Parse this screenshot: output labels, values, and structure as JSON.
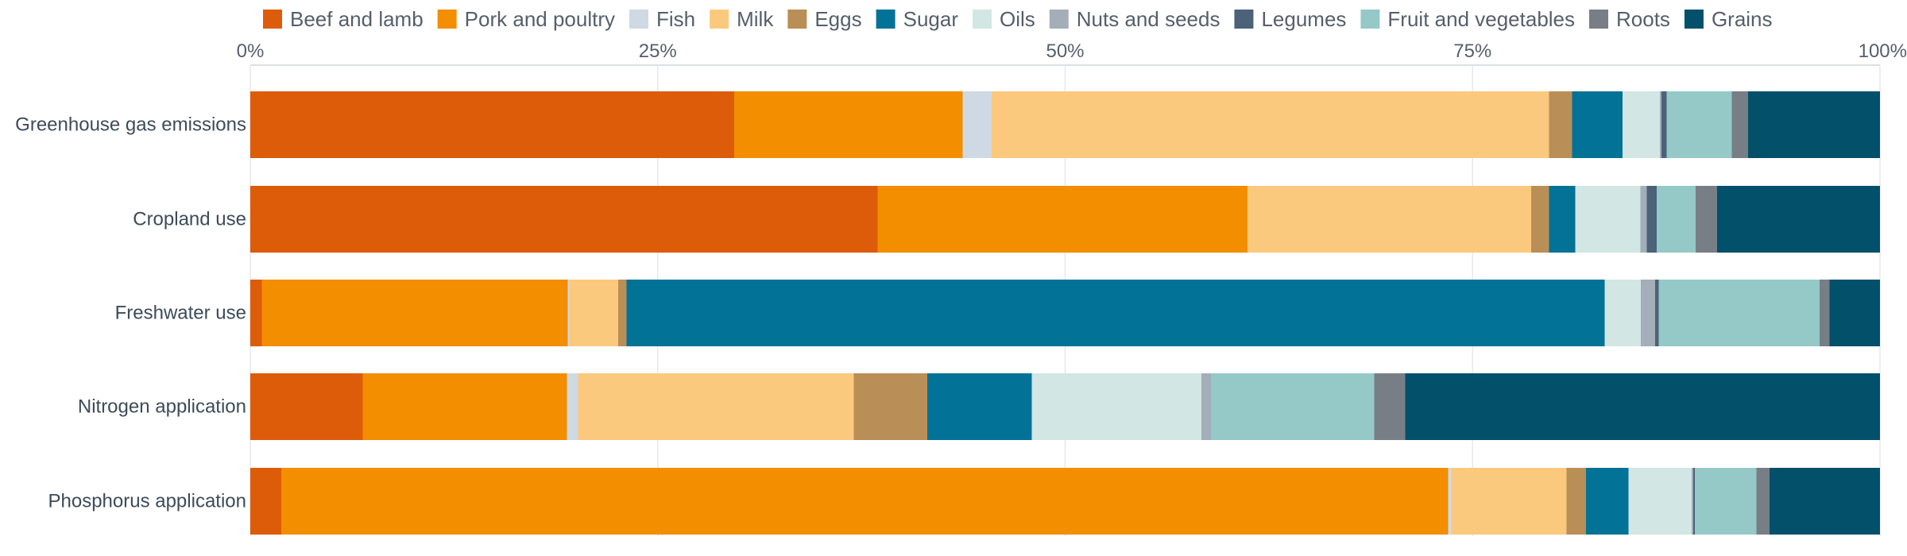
{
  "chart_data": {
    "type": "bar",
    "orientation": "horizontal",
    "stacked": true,
    "normalized": true,
    "title": "",
    "xlabel": "",
    "ylabel": "",
    "xlim": [
      0,
      100
    ],
    "x_ticks": [
      "0%",
      "25%",
      "50%",
      "75%",
      "100%"
    ],
    "grid": true,
    "legend_position": "top",
    "categories": [
      "Greenhouse gas emissions",
      "Cropland use",
      "Freshwater use",
      "Nitrogen application",
      "Phosphorus application"
    ],
    "series": [
      {
        "name": "Beef and lamb",
        "color": "#dd5c0a",
        "values": [
          29.7,
          38.5,
          0.7,
          6.9,
          1.9
        ]
      },
      {
        "name": "Pork and poultry",
        "color": "#f28e00",
        "values": [
          14.0,
          22.7,
          18.8,
          12.5,
          71.9
        ]
      },
      {
        "name": "Fish",
        "color": "#cfd9e3",
        "values": [
          1.8,
          0.0,
          0.1,
          0.7,
          0.2
        ]
      },
      {
        "name": "Milk",
        "color": "#fbc97d",
        "values": [
          34.2,
          17.4,
          3.0,
          16.9,
          7.1
        ]
      },
      {
        "name": "Eggs",
        "color": "#b98f57",
        "values": [
          1.4,
          1.1,
          0.5,
          4.5,
          1.2
        ]
      },
      {
        "name": "Sugar",
        "color": "#037297",
        "values": [
          3.1,
          1.6,
          60.1,
          6.4,
          2.6
        ]
      },
      {
        "name": "Oils",
        "color": "#d2e6e4",
        "values": [
          2.3,
          4.0,
          2.2,
          10.4,
          3.9
        ]
      },
      {
        "name": "Nuts and seeds",
        "color": "#a3aeb8",
        "values": [
          0.1,
          0.4,
          0.9,
          0.6,
          0.1
        ]
      },
      {
        "name": "Legumes",
        "color": "#4b6278",
        "values": [
          0.3,
          0.6,
          0.2,
          0.0,
          0.1
        ]
      },
      {
        "name": "Fruit and vegetables",
        "color": "#94c9c8",
        "values": [
          4.0,
          2.4,
          9.9,
          10.0,
          3.8
        ]
      },
      {
        "name": "Roots",
        "color": "#787e86",
        "values": [
          1.0,
          1.3,
          0.6,
          1.9,
          0.8
        ]
      },
      {
        "name": "Grains",
        "color": "#03506b",
        "values": [
          8.1,
          10.0,
          3.1,
          29.1,
          6.8
        ]
      }
    ]
  }
}
